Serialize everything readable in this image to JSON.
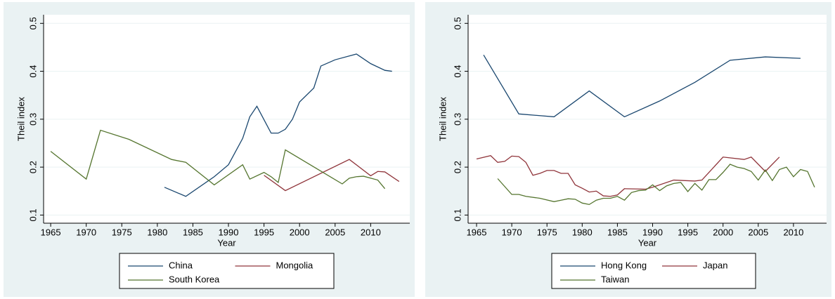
{
  "chart_data": [
    {
      "type": "line",
      "x_label": "Year",
      "y_label": "Theil index",
      "xlim": [
        1964,
        2015.5
      ],
      "xticks": [
        1965,
        1970,
        1975,
        1980,
        1985,
        1990,
        1995,
        2000,
        2005,
        2010
      ],
      "ylim": [
        0.083,
        0.518
      ],
      "yticks": [
        0.1,
        0.2,
        0.3,
        0.4,
        0.5
      ],
      "grid": true,
      "series": [
        {
          "name": "China",
          "color": "#1a476f",
          "x": [
            1981,
            1984,
            1988,
            1990,
            1992,
            1993,
            1994,
            1996,
            1997,
            1998,
            1999,
            2000,
            2002,
            2003,
            2005,
            2008,
            2010,
            2012,
            2013
          ],
          "values": [
            0.158,
            0.139,
            0.18,
            0.205,
            0.26,
            0.305,
            0.327,
            0.271,
            0.271,
            0.279,
            0.3,
            0.336,
            0.365,
            0.411,
            0.424,
            0.436,
            0.416,
            0.402,
            0.4
          ]
        },
        {
          "name": "Mongolia",
          "color": "#90353b",
          "x": [
            1995,
            1998,
            2007,
            2010,
            2011,
            2012,
            2014
          ],
          "values": [
            0.183,
            0.151,
            0.216,
            0.182,
            0.191,
            0.19,
            0.17
          ]
        },
        {
          "name": "South Korea",
          "color": "#55752f",
          "x": [
            1965,
            1970,
            1972,
            1976,
            1982,
            1984,
            1988,
            1992,
            1993,
            1995,
            1996,
            1997,
            1998,
            2006,
            2007,
            2008,
            2009,
            2011,
            2012
          ],
          "values": [
            0.233,
            0.175,
            0.277,
            0.258,
            0.216,
            0.21,
            0.163,
            0.205,
            0.175,
            0.189,
            0.18,
            0.168,
            0.236,
            0.165,
            0.177,
            0.18,
            0.181,
            0.173,
            0.155
          ]
        }
      ]
    },
    {
      "type": "line",
      "x_label": "Year",
      "y_label": "Theil index",
      "xlim": [
        1963.8,
        2014.7
      ],
      "xticks": [
        1965,
        1970,
        1975,
        1980,
        1985,
        1990,
        1995,
        2000,
        2005,
        2010
      ],
      "ylim": [
        0.083,
        0.518
      ],
      "yticks": [
        0.1,
        0.2,
        0.3,
        0.4,
        0.5
      ],
      "grid": true,
      "series": [
        {
          "name": "Hong Kong",
          "color": "#1a476f",
          "x": [
            1966,
            1971,
            1976,
            1981,
            1986,
            1991,
            1996,
            2001,
            2006,
            2011
          ],
          "values": [
            0.434,
            0.311,
            0.305,
            0.359,
            0.305,
            0.338,
            0.377,
            0.423,
            0.43,
            0.427
          ]
        },
        {
          "name": "Japan",
          "color": "#90353b",
          "x": [
            1965,
            1967,
            1968,
            1969,
            1970,
            1971,
            1972,
            1973,
            1974,
            1975,
            1976,
            1977,
            1978,
            1979,
            1980,
            1981,
            1982,
            1983,
            1984,
            1985,
            1986,
            1989,
            1990,
            1993,
            1996,
            1997,
            2000,
            2003,
            2004,
            2006,
            2008
          ],
          "values": [
            0.217,
            0.224,
            0.21,
            0.212,
            0.223,
            0.222,
            0.21,
            0.183,
            0.187,
            0.193,
            0.193,
            0.187,
            0.187,
            0.163,
            0.156,
            0.148,
            0.15,
            0.14,
            0.139,
            0.142,
            0.155,
            0.154,
            0.158,
            0.173,
            0.171,
            0.173,
            0.221,
            0.216,
            0.221,
            0.191,
            0.221
          ]
        },
        {
          "name": "Taiwan",
          "color": "#55752f",
          "x": [
            1968,
            1970,
            1971,
            1972,
            1974,
            1976,
            1977,
            1978,
            1979,
            1980,
            1981,
            1982,
            1983,
            1984,
            1985,
            1986,
            1987,
            1988,
            1989,
            1990,
            1991,
            1992,
            1993,
            1994,
            1995,
            1996,
            1997,
            1998,
            1999,
            2000,
            2001,
            2002,
            2003,
            2004,
            2005,
            2006,
            2007,
            2008,
            2009,
            2010,
            2011,
            2012,
            2013
          ],
          "values": [
            0.176,
            0.143,
            0.143,
            0.139,
            0.135,
            0.128,
            0.131,
            0.134,
            0.133,
            0.125,
            0.122,
            0.131,
            0.135,
            0.135,
            0.139,
            0.131,
            0.147,
            0.151,
            0.152,
            0.163,
            0.151,
            0.161,
            0.166,
            0.168,
            0.149,
            0.166,
            0.152,
            0.174,
            0.174,
            0.189,
            0.206,
            0.2,
            0.197,
            0.191,
            0.173,
            0.194,
            0.172,
            0.195,
            0.2,
            0.18,
            0.195,
            0.191,
            0.158
          ]
        }
      ]
    }
  ]
}
